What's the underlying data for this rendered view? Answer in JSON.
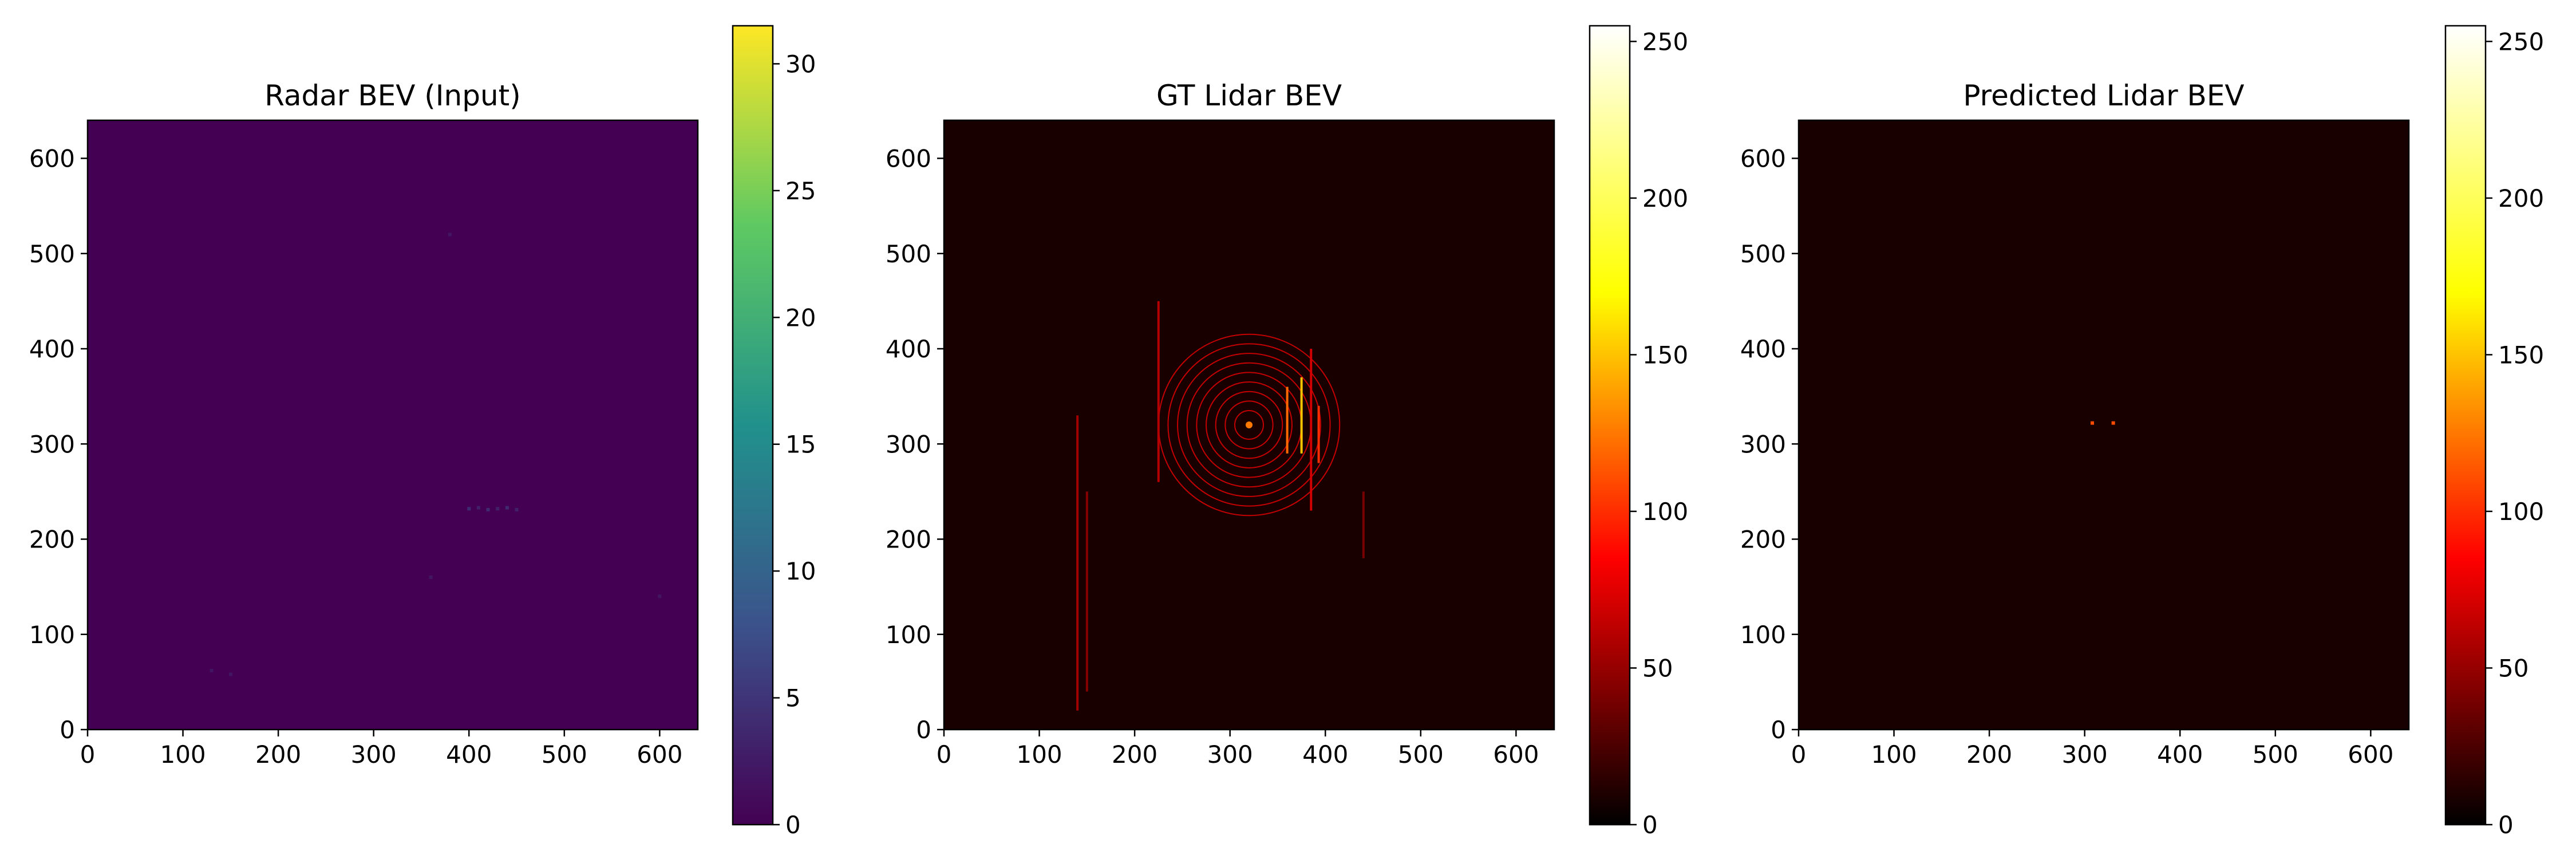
{
  "chart_data": [
    {
      "type": "heatmap",
      "title": "Radar BEV (Input)",
      "colormap": "viridis",
      "colormap_stops": [
        "#440154",
        "#3b528b",
        "#21918c",
        "#5ec962",
        "#fde725"
      ],
      "xlim": [
        0,
        640
      ],
      "ylim": [
        0,
        640
      ],
      "xticks": [
        0,
        100,
        200,
        300,
        400,
        500,
        600
      ],
      "yticks": [
        0,
        100,
        200,
        300,
        400,
        500,
        600
      ],
      "clim": [
        0,
        31.5
      ],
      "colorbar_ticks": [
        0,
        5,
        10,
        15,
        20,
        25,
        30
      ],
      "background_value": 0,
      "sparse_points": [
        {
          "x": 400,
          "y": 232,
          "v": 4
        },
        {
          "x": 410,
          "y": 233,
          "v": 3
        },
        {
          "x": 420,
          "y": 231,
          "v": 4
        },
        {
          "x": 430,
          "y": 232,
          "v": 3
        },
        {
          "x": 440,
          "y": 233,
          "v": 4
        },
        {
          "x": 450,
          "y": 231,
          "v": 3
        },
        {
          "x": 130,
          "y": 62,
          "v": 2
        },
        {
          "x": 150,
          "y": 58,
          "v": 2
        },
        {
          "x": 380,
          "y": 520,
          "v": 2
        },
        {
          "x": 600,
          "y": 140,
          "v": 2
        },
        {
          "x": 360,
          "y": 160,
          "v": 2
        }
      ]
    },
    {
      "type": "heatmap",
      "title": "GT Lidar BEV",
      "colormap": "hot",
      "colormap_stops": [
        "#000000",
        "#ff0000",
        "#ffff00",
        "#ffffff"
      ],
      "xlim": [
        0,
        640
      ],
      "ylim": [
        0,
        640
      ],
      "xticks": [
        0,
        100,
        200,
        300,
        400,
        500,
        600
      ],
      "yticks": [
        0,
        100,
        200,
        300,
        400,
        500,
        600
      ],
      "clim": [
        0,
        255
      ],
      "colorbar_ticks": [
        0,
        50,
        100,
        150,
        200,
        250
      ],
      "background_value": 8,
      "sensor_center": {
        "x": 320,
        "y": 320
      },
      "ring_radii": [
        15,
        25,
        35,
        45,
        55,
        65,
        75,
        85,
        95
      ],
      "ring_value": 85,
      "line_segments": [
        {
          "x": 140,
          "y0": 20,
          "y1": 330,
          "v": 55
        },
        {
          "x": 150,
          "y0": 40,
          "y1": 250,
          "v": 45
        },
        {
          "x": 360,
          "y0": 290,
          "y1": 360,
          "v": 120
        },
        {
          "x": 375,
          "y0": 290,
          "y1": 370,
          "v": 150
        },
        {
          "x": 385,
          "y0": 230,
          "y1": 400,
          "v": 70
        },
        {
          "x": 393,
          "y0": 280,
          "y1": 340,
          "v": 100
        },
        {
          "x": 225,
          "y0": 260,
          "y1": 450,
          "v": 60
        },
        {
          "x": 440,
          "y0": 180,
          "y1": 250,
          "v": 40
        }
      ]
    },
    {
      "type": "heatmap",
      "title": "Predicted Lidar BEV",
      "colormap": "hot",
      "colormap_stops": [
        "#000000",
        "#ff0000",
        "#ffff00",
        "#ffffff"
      ],
      "xlim": [
        0,
        640
      ],
      "ylim": [
        0,
        640
      ],
      "xticks": [
        0,
        100,
        200,
        300,
        400,
        500,
        600
      ],
      "yticks": [
        0,
        100,
        200,
        300,
        400,
        500,
        600
      ],
      "clim": [
        0,
        255
      ],
      "colorbar_ticks": [
        0,
        50,
        100,
        150,
        200,
        250
      ],
      "background_value": 8,
      "sparse_points": [
        {
          "x": 308,
          "y": 322,
          "v": 110
        },
        {
          "x": 330,
          "y": 322,
          "v": 110
        }
      ]
    }
  ]
}
